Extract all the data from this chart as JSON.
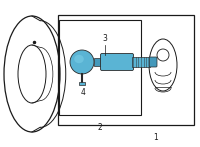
{
  "bg_color": "#ffffff",
  "line_color": "#1a1a1a",
  "part_color_blue": "#5ab4d4",
  "part_color_blue2": "#4499bb",
  "part_color_outline": "#2a2a2a",
  "label_1": "1",
  "label_2": "2",
  "label_3": "3",
  "label_4": "4",
  "font_size": 5.5
}
